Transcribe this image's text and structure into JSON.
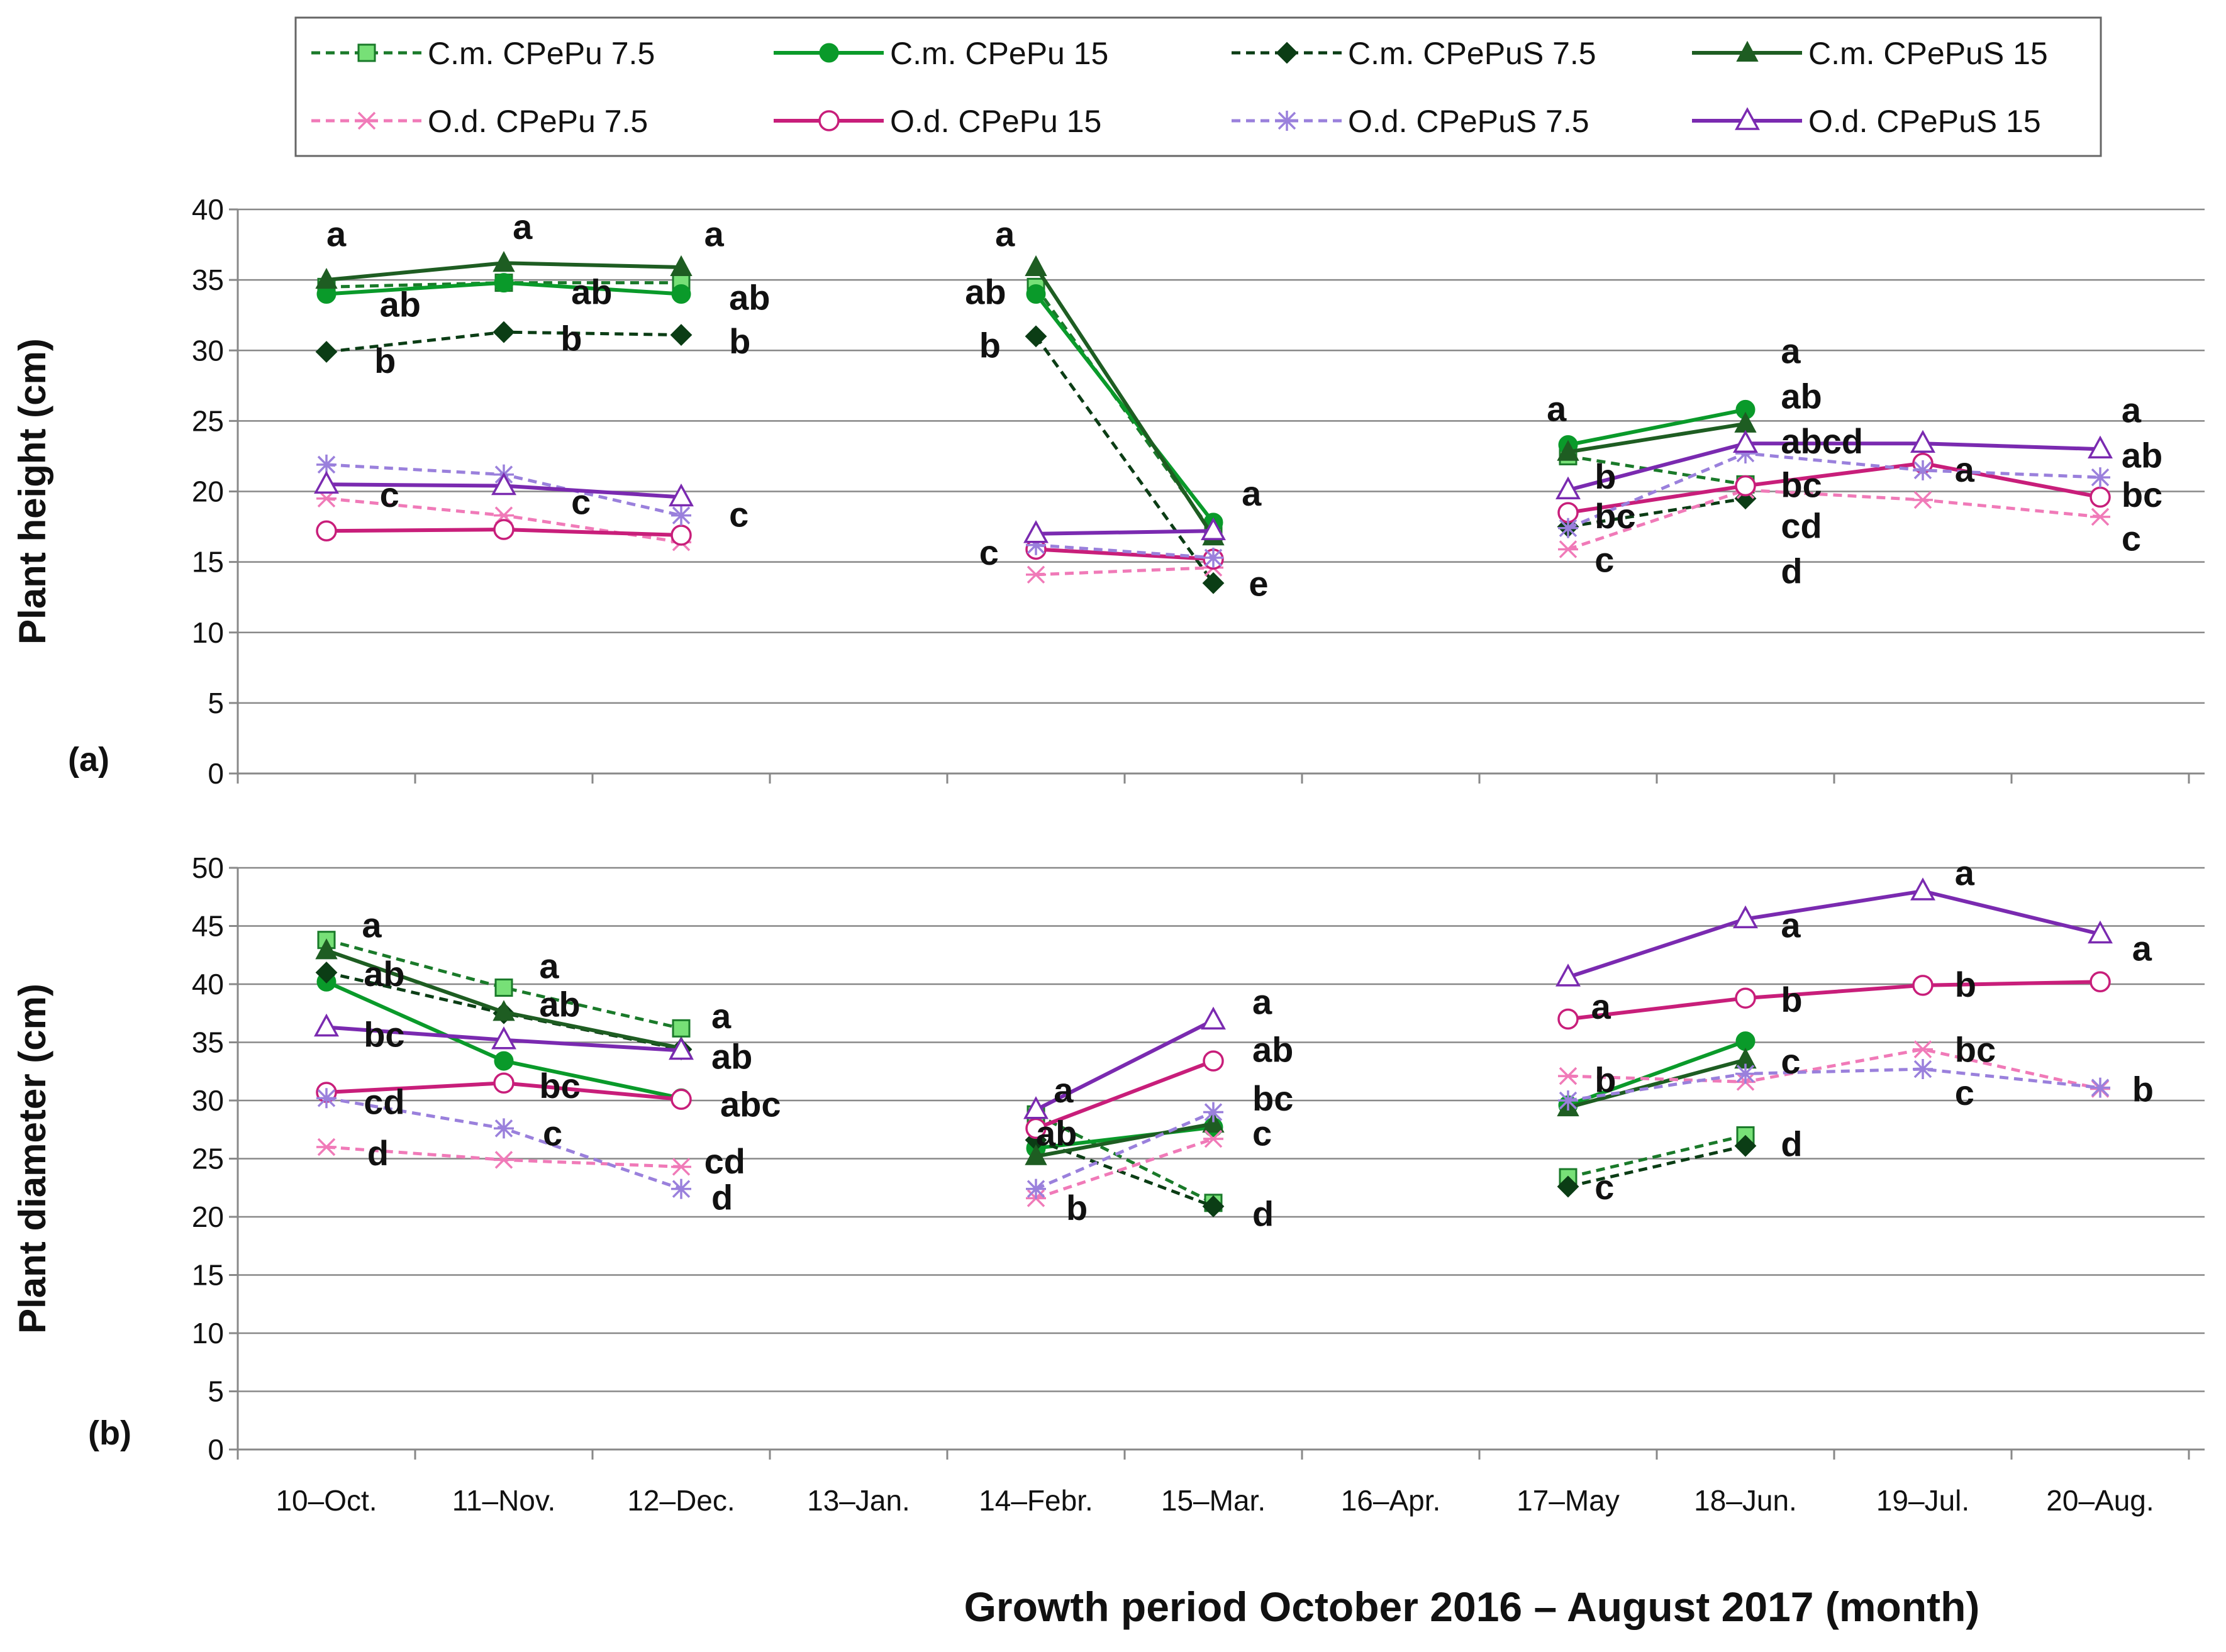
{
  "chart_data": {
    "type": "line",
    "x_title": "Growth period October 2016 – August 2017 (month)",
    "categories": [
      "10–Oct.",
      "11–Nov.",
      "12–Dec.",
      "13–Jan.",
      "14–Febr.",
      "15–Mar.",
      "16–Apr.",
      "17–May",
      "18–Jun.",
      "19–Jul.",
      "20–Aug."
    ],
    "series_styles": [
      {
        "name": "C.m. CPePu 7.5",
        "color": "#1a7a2a",
        "fill": "#77e077",
        "dash": true,
        "marker": "square"
      },
      {
        "name": "C.m. CPePu 15",
        "color": "#0a9a2a",
        "fill": "#0a9a2a",
        "dash": false,
        "marker": "circle"
      },
      {
        "name": "C.m. CPePuS 7.5",
        "color": "#0b3d15",
        "fill": "#0b3d15",
        "dash": true,
        "marker": "diamond"
      },
      {
        "name": "C.m. CPePuS 15",
        "color": "#1e5d22",
        "fill": "#1e5d22",
        "dash": false,
        "marker": "triangle"
      },
      {
        "name": "O.d. CPePu 7.5",
        "color": "#f07ab8",
        "fill": "#f07ab8",
        "dash": true,
        "marker": "x"
      },
      {
        "name": "O.d. CPePu 15",
        "color": "#c81e7a",
        "fill": "none",
        "dash": false,
        "marker": "circle-open"
      },
      {
        "name": "O.d. CPePuS 7.5",
        "color": "#9a80dc",
        "fill": "#9a80dc",
        "dash": true,
        "marker": "star"
      },
      {
        "name": "O.d. CPePuS 15",
        "color": "#7a2ab0",
        "fill": "none",
        "dash": false,
        "marker": "triangle-open"
      }
    ],
    "panels": [
      {
        "label": "(a)",
        "ylabel": "Plant height (cm)",
        "ylim": [
          0,
          40
        ],
        "ystep": 5,
        "series": [
          {
            "name": "C.m. CPePu 7.5",
            "values": [
              34.5,
              34.8,
              34.8,
              null,
              34.5,
              17.0,
              null,
              22.5,
              20.5,
              null,
              null
            ]
          },
          {
            "name": "C.m. CPePu 15",
            "values": [
              34.0,
              34.8,
              34.0,
              null,
              34.0,
              17.8,
              null,
              23.3,
              25.8,
              null,
              null
            ]
          },
          {
            "name": "C.m. CPePuS 7.5",
            "values": [
              29.9,
              31.3,
              31.1,
              null,
              31.0,
              13.5,
              null,
              17.5,
              19.5,
              null,
              null
            ]
          },
          {
            "name": "C.m. CPePuS 15",
            "values": [
              35.0,
              36.2,
              35.9,
              null,
              35.9,
              16.8,
              null,
              22.8,
              24.8,
              null,
              null
            ]
          },
          {
            "name": "O.d. CPePu 7.5",
            "values": [
              19.5,
              18.3,
              16.4,
              null,
              14.1,
              14.6,
              null,
              15.9,
              20.1,
              19.4,
              18.2
            ]
          },
          {
            "name": "O.d. CPePu 15",
            "values": [
              17.2,
              17.3,
              16.9,
              null,
              15.9,
              15.2,
              null,
              18.5,
              20.4,
              22.0,
              19.6
            ]
          },
          {
            "name": "O.d. CPePuS 7.5",
            "values": [
              21.9,
              21.2,
              18.3,
              null,
              16.2,
              15.3,
              null,
              17.4,
              22.7,
              21.5,
              21.0
            ]
          },
          {
            "name": "O.d. CPePuS 15",
            "values": [
              20.5,
              20.4,
              19.6,
              null,
              17.0,
              17.2,
              null,
              20.1,
              23.4,
              23.4,
              23.0
            ]
          }
        ],
        "annotations": [
          {
            "text": "a",
            "x": 0,
            "y": 38.2
          },
          {
            "text": "ab",
            "x": 0.3,
            "y": 33.2
          },
          {
            "text": "b",
            "x": 0.27,
            "y": 29.2
          },
          {
            "text": "c",
            "x": 0.3,
            "y": 19.7
          },
          {
            "text": "a",
            "x": 1.05,
            "y": 38.7
          },
          {
            "text": "ab",
            "x": 1.38,
            "y": 34.1
          },
          {
            "text": "b",
            "x": 1.32,
            "y": 30.8
          },
          {
            "text": "c",
            "x": 1.38,
            "y": 19.2
          },
          {
            "text": "a",
            "x": 2.13,
            "y": 38.2
          },
          {
            "text": "ab",
            "x": 2.27,
            "y": 33.7
          },
          {
            "text": "b",
            "x": 2.27,
            "y": 30.6
          },
          {
            "text": "c",
            "x": 2.27,
            "y": 18.3
          },
          {
            "text": "a",
            "x": 3.77,
            "y": 38.2
          },
          {
            "text": "ab",
            "x": 3.6,
            "y": 34.1
          },
          {
            "text": "b",
            "x": 3.68,
            "y": 30.3
          },
          {
            "text": "c",
            "x": 3.68,
            "y": 15.6
          },
          {
            "text": "a",
            "x": 5.16,
            "y": 19.8
          },
          {
            "text": "e",
            "x": 5.2,
            "y": 13.4
          },
          {
            "text": "a",
            "x": 6.88,
            "y": 25.8
          },
          {
            "text": "b",
            "x": 7.15,
            "y": 21.0
          },
          {
            "text": "bc",
            "x": 7.15,
            "y": 18.2
          },
          {
            "text": "c",
            "x": 7.15,
            "y": 15.1
          },
          {
            "text": "a",
            "x": 8.2,
            "y": 29.9
          },
          {
            "text": "ab",
            "x": 8.2,
            "y": 26.7
          },
          {
            "text": "abcd",
            "x": 8.2,
            "y": 23.5
          },
          {
            "text": "bc",
            "x": 8.2,
            "y": 20.4
          },
          {
            "text": "cd",
            "x": 8.2,
            "y": 17.5
          },
          {
            "text": "d",
            "x": 8.2,
            "y": 14.3
          },
          {
            "text": "a",
            "x": 9.18,
            "y": 21.5
          },
          {
            "text": "a",
            "x": 10.12,
            "y": 25.7
          },
          {
            "text": "ab",
            "x": 10.12,
            "y": 22.5
          },
          {
            "text": "bc",
            "x": 10.12,
            "y": 19.7
          },
          {
            "text": "c",
            "x": 10.12,
            "y": 16.6
          }
        ]
      },
      {
        "label": "(b)",
        "ylabel": "Plant diameter (cm)",
        "ylim": [
          0,
          50
        ],
        "ystep": 5,
        "series": [
          {
            "name": "C.m. CPePu 7.5",
            "values": [
              43.8,
              39.7,
              36.2,
              null,
              28.8,
              21.2,
              null,
              23.4,
              27.0,
              null,
              null
            ]
          },
          {
            "name": "C.m. CPePu 15",
            "values": [
              40.2,
              33.4,
              30.2,
              null,
              25.9,
              27.7,
              null,
              29.6,
              35.1,
              null,
              null
            ]
          },
          {
            "name": "C.m. CPePuS 7.5",
            "values": [
              41.0,
              37.5,
              34.4,
              null,
              26.6,
              20.9,
              null,
              22.6,
              26.1,
              null,
              null
            ]
          },
          {
            "name": "C.m. CPePuS 15",
            "values": [
              42.9,
              37.6,
              34.5,
              null,
              25.2,
              28.0,
              null,
              29.4,
              33.5,
              null,
              null
            ]
          },
          {
            "name": "O.d. CPePu 7.5",
            "values": [
              26.0,
              24.9,
              24.3,
              null,
              21.6,
              26.7,
              null,
              32.1,
              31.6,
              34.4,
              31.0
            ]
          },
          {
            "name": "O.d. CPePu 15",
            "values": [
              30.7,
              31.5,
              30.1,
              null,
              27.6,
              33.4,
              null,
              37.0,
              38.8,
              39.9,
              40.2
            ]
          },
          {
            "name": "O.d. CPePuS 7.5",
            "values": [
              30.2,
              27.6,
              22.4,
              null,
              22.4,
              29.0,
              null,
              30.0,
              32.3,
              32.7,
              31.1
            ]
          },
          {
            "name": "O.d. CPePuS 15",
            "values": [
              36.3,
              35.2,
              34.3,
              null,
              29.2,
              36.9,
              null,
              40.6,
              45.6,
              48.0,
              44.3
            ]
          }
        ],
        "annotations": [
          {
            "text": "a",
            "x": 0.2,
            "y": 45.0
          },
          {
            "text": "ab",
            "x": 0.21,
            "y": 40.8
          },
          {
            "text": "bc",
            "x": 0.21,
            "y": 35.6
          },
          {
            "text": "cd",
            "x": 0.21,
            "y": 29.8
          },
          {
            "text": "d",
            "x": 0.23,
            "y": 25.4
          },
          {
            "text": "a",
            "x": 1.2,
            "y": 41.5
          },
          {
            "text": "ab",
            "x": 1.2,
            "y": 38.2
          },
          {
            "text": "bc",
            "x": 1.2,
            "y": 31.2
          },
          {
            "text": "c",
            "x": 1.22,
            "y": 27.1
          },
          {
            "text": "a",
            "x": 2.17,
            "y": 37.2
          },
          {
            "text": "ab",
            "x": 2.17,
            "y": 33.7
          },
          {
            "text": "abc",
            "x": 2.22,
            "y": 29.6
          },
          {
            "text": "cd",
            "x": 2.13,
            "y": 24.7
          },
          {
            "text": "d",
            "x": 2.17,
            "y": 21.6
          },
          {
            "text": "a",
            "x": 4.1,
            "y": 30.8
          },
          {
            "text": "ab",
            "x": 4.0,
            "y": 27.1
          },
          {
            "text": "b",
            "x": 4.17,
            "y": 20.7
          },
          {
            "text": "a",
            "x": 5.22,
            "y": 38.4
          },
          {
            "text": "ab",
            "x": 5.22,
            "y": 34.3
          },
          {
            "text": "bc",
            "x": 5.22,
            "y": 30.1
          },
          {
            "text": "c",
            "x": 5.22,
            "y": 27.1
          },
          {
            "text": "d",
            "x": 5.22,
            "y": 20.2
          },
          {
            "text": "a",
            "x": 7.13,
            "y": 38.0
          },
          {
            "text": "b",
            "x": 7.15,
            "y": 31.7
          },
          {
            "text": "c",
            "x": 7.15,
            "y": 22.5
          },
          {
            "text": "a",
            "x": 8.2,
            "y": 45.0
          },
          {
            "text": "b",
            "x": 8.2,
            "y": 38.6
          },
          {
            "text": "c",
            "x": 8.2,
            "y": 33.3
          },
          {
            "text": "d",
            "x": 8.2,
            "y": 26.2
          },
          {
            "text": "a",
            "x": 9.18,
            "y": 49.5
          },
          {
            "text": "b",
            "x": 9.18,
            "y": 39.9
          },
          {
            "text": "bc",
            "x": 9.18,
            "y": 34.3
          },
          {
            "text": "c",
            "x": 9.18,
            "y": 30.6
          },
          {
            "text": "a",
            "x": 10.18,
            "y": 43.0
          },
          {
            "text": "b",
            "x": 10.18,
            "y": 30.9
          }
        ]
      }
    ]
  }
}
